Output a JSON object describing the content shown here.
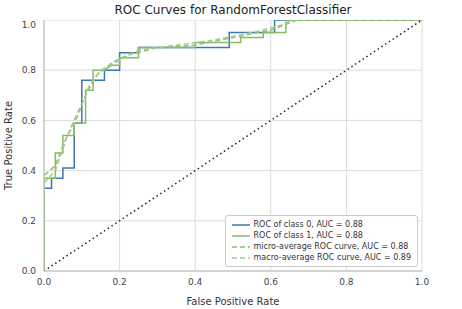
{
  "chart_data": {
    "type": "line",
    "title": "ROC Curves for RandomForestClassifier",
    "x_label": "False Positive Rate",
    "y_label": "True Positive Rate",
    "xlim": [
      0,
      1
    ],
    "ylim": [
      0,
      1
    ],
    "xticks": [
      {
        "value": 0,
        "label": "0.0"
      },
      0.2,
      0.4,
      0.6,
      0.8,
      {
        "value": 1,
        "label": "1.0"
      }
    ],
    "yticks": [
      {
        "value": 0,
        "label": "0.0"
      },
      0.2,
      0.4,
      0.6,
      0.8,
      {
        "value": 1,
        "label": "1.0"
      }
    ],
    "grid": true,
    "legend": "lower right",
    "series": [
      {
        "name": "ROC of class 0, AUC = 0.88",
        "color": "#3a78b0",
        "line_style": "solid",
        "x": [
          0,
          0,
          0.02,
          0.02,
          0.05,
          0.05,
          0.08,
          0.08,
          0.1,
          0.1,
          0.16,
          0.16,
          0.2,
          0.2,
          0.25,
          0.25,
          0.49,
          0.49,
          0.61,
          0.61,
          1
        ],
        "values": [
          0,
          0.33,
          0.33,
          0.37,
          0.37,
          0.41,
          0.41,
          0.59,
          0.59,
          0.76,
          0.76,
          0.8,
          0.8,
          0.87,
          0.87,
          0.89,
          0.89,
          0.95,
          0.95,
          1,
          1
        ]
      },
      {
        "name": "ROC of class 1, AUC = 0.88",
        "color": "#86b96a",
        "line_style": "solid",
        "x": [
          0,
          0,
          0.03,
          0.03,
          0.05,
          0.05,
          0.08,
          0.08,
          0.11,
          0.11,
          0.13,
          0.13,
          0.16,
          0.18,
          0.2,
          0.2,
          0.25,
          0.25,
          0.4,
          0.4,
          0.52,
          0.52,
          0.58,
          0.58,
          0.64,
          0.64,
          1
        ],
        "values": [
          0,
          0.37,
          0.37,
          0.47,
          0.47,
          0.54,
          0.54,
          0.59,
          0.59,
          0.72,
          0.72,
          0.8,
          0.8,
          0.82,
          0.82,
          0.85,
          0.85,
          0.89,
          0.89,
          0.91,
          0.91,
          0.93,
          0.93,
          0.95,
          0.95,
          1,
          1
        ]
      },
      {
        "name": "micro-average ROC curve, AUC = 0.88",
        "color": "#8cc070",
        "line_style": "dashed",
        "x": [
          0,
          0,
          0.03,
          0.05,
          0.08,
          0.11,
          0.14,
          0.18,
          0.22,
          0.3,
          0.4,
          0.5,
          0.6,
          0.67,
          1
        ],
        "values": [
          0,
          0.38,
          0.42,
          0.5,
          0.6,
          0.7,
          0.78,
          0.83,
          0.86,
          0.89,
          0.9,
          0.93,
          0.96,
          1,
          1
        ]
      },
      {
        "name": "macro-average ROC curve, AUC = 0.89",
        "color": "#a8cc8c",
        "line_style": "dashed",
        "x": [
          0,
          0,
          0.03,
          0.06,
          0.09,
          0.12,
          0.15,
          0.2,
          0.25,
          0.35,
          0.45,
          0.55,
          0.63,
          0.66,
          1
        ],
        "values": [
          0,
          0.35,
          0.4,
          0.53,
          0.62,
          0.74,
          0.8,
          0.84,
          0.88,
          0.9,
          0.92,
          0.95,
          0.98,
          1,
          1
        ]
      },
      {
        "color": "#222222",
        "line_style": "dotted",
        "x": [
          0,
          1
        ],
        "values": [
          0,
          1
        ]
      }
    ]
  }
}
